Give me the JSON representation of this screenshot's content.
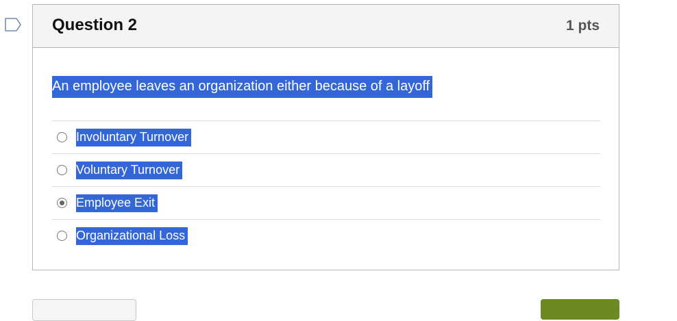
{
  "question": {
    "title": "Question 2",
    "points": "1 pts",
    "text": "An employee leaves an organization either because of a layoff",
    "answers": [
      {
        "label": "Involuntary Turnover",
        "selected": false
      },
      {
        "label": "Voluntary Turnover",
        "selected": false
      },
      {
        "label": "Employee Exit",
        "selected": true
      },
      {
        "label": "Organizational Loss",
        "selected": false
      }
    ]
  },
  "colors": {
    "highlight": "#3366d6",
    "next_button": "#6b8a22"
  }
}
